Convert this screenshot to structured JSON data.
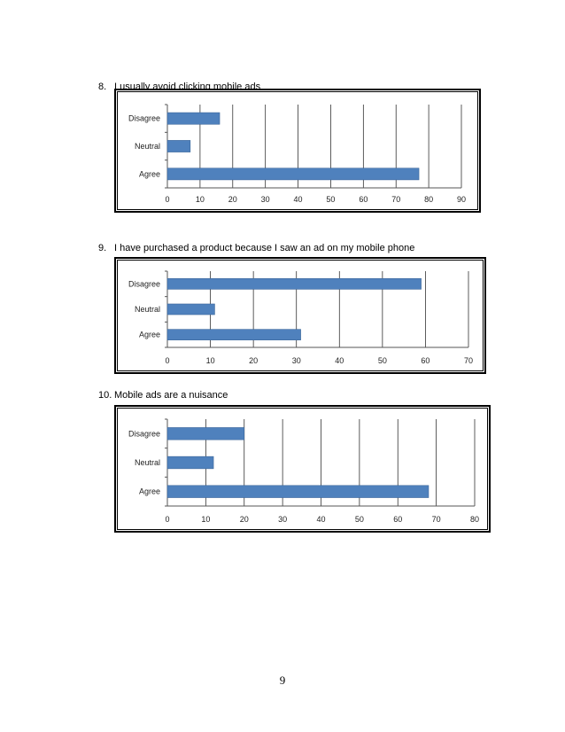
{
  "page": {
    "page_number": "9"
  },
  "chart_data": [
    {
      "type": "bar",
      "orientation": "horizontal",
      "question_number": "8.",
      "title": "I usually avoid clicking mobile ads",
      "categories": [
        "Disagree",
        "Neutral",
        "Agree"
      ],
      "values": [
        16,
        7,
        77
      ],
      "xlim": [
        0,
        90
      ],
      "ticks": [
        0,
        10,
        20,
        30,
        40,
        50,
        60,
        70,
        80,
        90
      ],
      "grid": "vertical",
      "legend": "none",
      "bar_color": "#4F81BD"
    },
    {
      "type": "bar",
      "orientation": "horizontal",
      "question_number": "9.",
      "title": "I have purchased a product because I saw an ad on my mobile phone",
      "categories": [
        "Disagree",
        "Neutral",
        "Agree"
      ],
      "values": [
        59,
        11,
        31
      ],
      "xlim": [
        0,
        70
      ],
      "ticks": [
        0,
        10,
        20,
        30,
        40,
        50,
        60,
        70
      ],
      "grid": "vertical",
      "legend": "none",
      "bar_color": "#4F81BD"
    },
    {
      "type": "bar",
      "orientation": "horizontal",
      "question_number": "10.",
      "title": "Mobile ads are a nuisance",
      "categories": [
        "Disagree",
        "Neutral",
        "Agree"
      ],
      "values": [
        20,
        12,
        68
      ],
      "xlim": [
        0,
        80
      ],
      "ticks": [
        0,
        10,
        20,
        30,
        40,
        50,
        60,
        70,
        80
      ],
      "grid": "vertical",
      "legend": "none",
      "bar_color": "#4F81BD"
    }
  ]
}
